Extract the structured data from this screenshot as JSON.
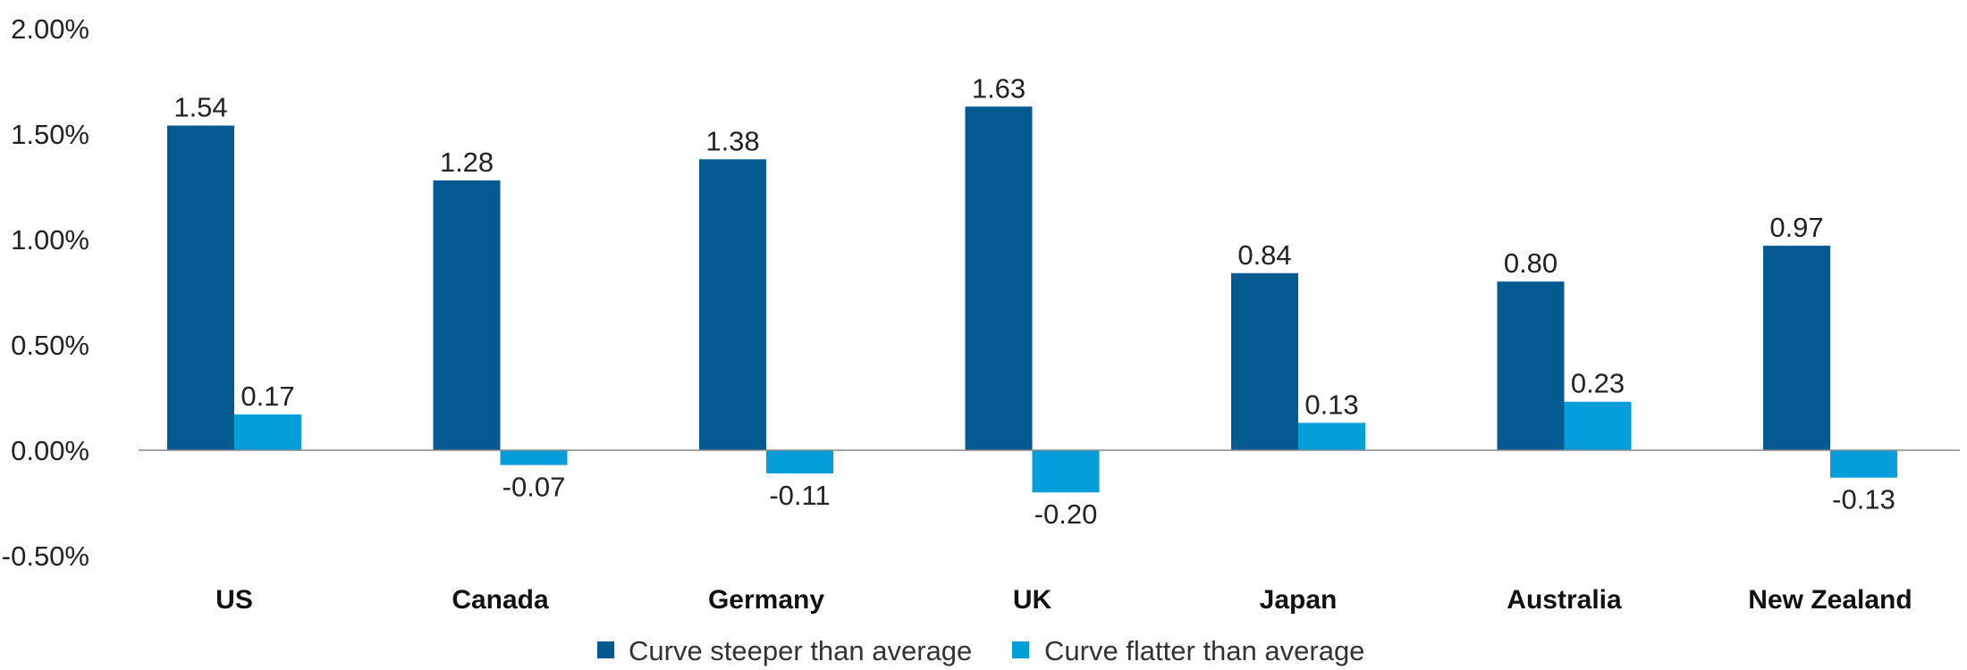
{
  "chart_data": {
    "type": "bar",
    "categories": [
      "US",
      "Canada",
      "Germany",
      "UK",
      "Japan",
      "Australia",
      "New Zealand"
    ],
    "series": [
      {
        "name": "Curve steeper than average",
        "color": "#035a91",
        "values": [
          1.54,
          1.28,
          1.38,
          1.63,
          0.84,
          0.8,
          0.97
        ],
        "labels": [
          "1.54",
          "1.28",
          "1.38",
          "1.63",
          "0.84",
          "0.80",
          "0.97"
        ]
      },
      {
        "name": "Curve flatter than average",
        "color": "#049fdb",
        "values": [
          0.17,
          -0.07,
          -0.11,
          -0.2,
          0.13,
          0.23,
          -0.13
        ],
        "labels": [
          "0.17",
          "-0.07",
          "-0.11",
          "-0.20",
          "0.13",
          "0.23",
          "-0.13"
        ]
      }
    ],
    "y_ticks": [
      {
        "value": 2.0,
        "label": "2.00%"
      },
      {
        "value": 1.5,
        "label": "1.50%"
      },
      {
        "value": 1.0,
        "label": "1.00%"
      },
      {
        "value": 0.5,
        "label": "0.50%"
      },
      {
        "value": 0.0,
        "label": "0.00%"
      },
      {
        "value": -0.5,
        "label": "-0.50%"
      }
    ],
    "ylim": [
      -0.5,
      2.0
    ],
    "grid": false,
    "legend_position": "bottom-center"
  }
}
